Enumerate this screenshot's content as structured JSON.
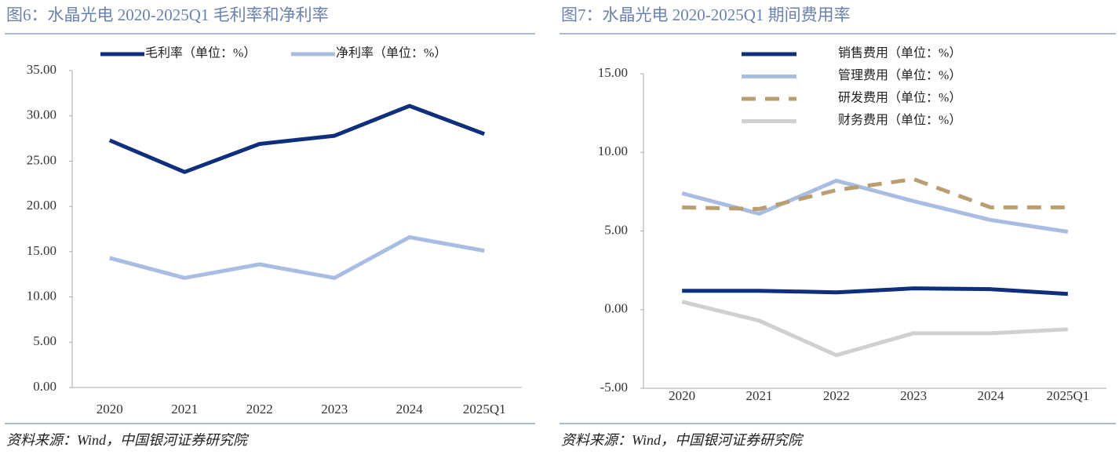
{
  "chart_data": [
    {
      "type": "line",
      "title": "图6：水晶光电 2020-2025Q1 毛利率和净利率",
      "source": "资料来源：Wind，中国银河证券研究院",
      "categories": [
        "2020",
        "2021",
        "2022",
        "2023",
        "2024",
        "2025Q1"
      ],
      "series": [
        {
          "name": "毛利率（单位：%）",
          "color": "#0f2f7c",
          "values": [
            27.3,
            23.8,
            26.9,
            27.8,
            31.1,
            28.0
          ]
        },
        {
          "name": "净利率（单位：%）",
          "color": "#a9bde3",
          "values": [
            14.3,
            12.1,
            13.6,
            12.1,
            16.6,
            15.1
          ]
        }
      ],
      "ylim": [
        0,
        35
      ],
      "yticks": [
        {
          "value": 0,
          "label": "0.00"
        },
        {
          "value": 5,
          "label": "5.00"
        },
        {
          "value": 10,
          "label": "10.00"
        },
        {
          "value": 15,
          "label": "15.00"
        },
        {
          "value": 20,
          "label": "20.00"
        },
        {
          "value": 25,
          "label": "25.00"
        },
        {
          "value": 30,
          "label": "30.00"
        },
        {
          "value": 35,
          "label": "35.00"
        }
      ],
      "legend": "top",
      "grid": false
    },
    {
      "type": "line",
      "title": "图7：水晶光电 2020-2025Q1 期间费用率",
      "source": "资料来源：Wind，中国银河证券研究院",
      "categories": [
        "2020",
        "2021",
        "2022",
        "2023",
        "2024",
        "2025Q1"
      ],
      "series": [
        {
          "name": "销售费用（单位：%）",
          "color": "#0f2f7c",
          "values": [
            1.2,
            1.2,
            1.1,
            1.35,
            1.3,
            1.0
          ]
        },
        {
          "name": "管理费用（单位：%）",
          "color": "#a9bde3",
          "values": [
            7.4,
            6.1,
            8.2,
            6.9,
            5.7,
            4.95
          ]
        },
        {
          "name": "研发费用（单位：%）",
          "color": "#b99e72",
          "dashed": true,
          "values": [
            6.5,
            6.4,
            7.6,
            8.3,
            6.5,
            6.5
          ]
        },
        {
          "name": "财务费用（单位：%）",
          "color": "#d0d0d0",
          "values": [
            0.5,
            -0.7,
            -2.9,
            -1.5,
            -1.5,
            -1.25
          ]
        }
      ],
      "ylim": [
        -5,
        15
      ],
      "yticks": [
        {
          "value": -5,
          "label": "-5.00"
        },
        {
          "value": 0,
          "label": "0.00"
        },
        {
          "value": 5,
          "label": "5.00"
        },
        {
          "value": 10,
          "label": "10.00"
        },
        {
          "value": 15,
          "label": "15.00"
        }
      ],
      "legend": "top-left",
      "grid": false
    }
  ]
}
